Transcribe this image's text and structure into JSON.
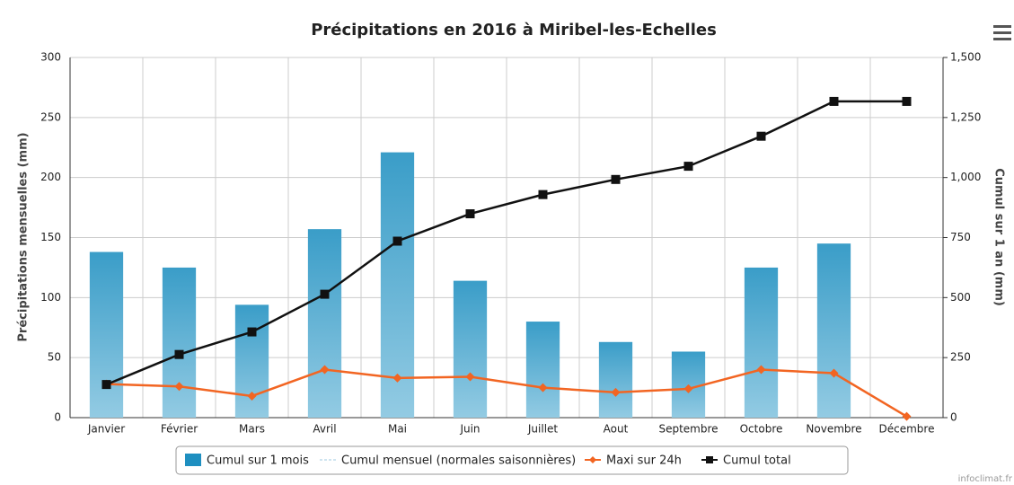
{
  "chart_data": {
    "type": "bar",
    "title": "Précipitations en 2016 à Miribel-les-Echelles",
    "y_label": "Précipitations mensuelles (mm)",
    "y2_label": "Cumul sur 1 an (mm)",
    "source": "infoclimat.fr",
    "categories": [
      "Janvier",
      "Février",
      "Mars",
      "Avril",
      "Mai",
      "Juin",
      "Juillet",
      "Aout",
      "Septembre",
      "Octobre",
      "Novembre",
      "Décembre"
    ],
    "ylim": [
      0,
      300
    ],
    "yticks": [
      0,
      50,
      100,
      150,
      200,
      250,
      300
    ],
    "y2lim": [
      0,
      1500
    ],
    "y2ticks": [
      0,
      250,
      500,
      750,
      {
        "value": 1000,
        "label": "1,000"
      },
      {
        "value": 1250,
        "label": "1,250"
      },
      {
        "value": 1500,
        "label": "1,500"
      }
    ],
    "grid": true,
    "legend": "bottom",
    "series": [
      {
        "name": "Cumul sur 1 mois",
        "type": "bar",
        "color": "#1e8fc0",
        "values": [
          138,
          125,
          94,
          157,
          221,
          114,
          80,
          63,
          55,
          125,
          145,
          0
        ]
      },
      {
        "name": "Cumul mensuel (normales saisonnières)",
        "type": "dashed",
        "color": "#9ecae1"
      },
      {
        "name": "Maxi sur 24h",
        "type": "line",
        "color": "#f26522",
        "values": [
          28,
          26,
          18,
          40,
          33,
          34,
          25,
          21,
          24,
          40,
          37,
          1
        ]
      },
      {
        "name": "Cumul total",
        "type": "line",
        "axis": "y2",
        "color": "#111111",
        "values": [
          138,
          263,
          357,
          514,
          735,
          849,
          929,
          992,
          1047,
          1172,
          1317,
          1317
        ]
      }
    ]
  }
}
